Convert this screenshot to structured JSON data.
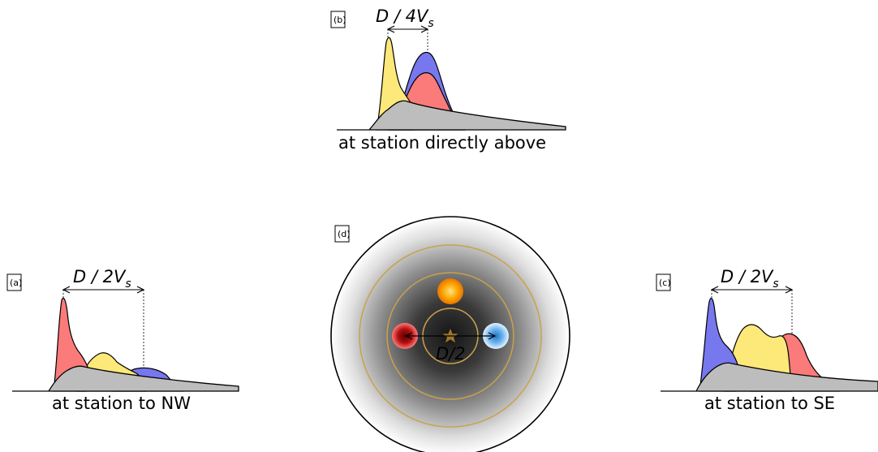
{
  "panels": {
    "b": {
      "tag": "(b)",
      "lag_main": "D / 4V",
      "lag_sub": "s",
      "caption": "at station directly above"
    },
    "a": {
      "tag": "(a)",
      "lag_main": "D / 2V",
      "lag_sub": "s",
      "caption": "at station to NW"
    },
    "c": {
      "tag": "(c)",
      "lag_main": "D / 2V",
      "lag_sub": "s",
      "caption": "at station to SE"
    },
    "d": {
      "tag": "(d)",
      "distance_label": "D/2"
    }
  },
  "colors": {
    "yellow": "#fde87a",
    "red": "#fb7a7a",
    "blue": "#7777ee",
    "gray": "#bdbdbd",
    "ring": "#c9a24a",
    "star": "#a0782a"
  },
  "icons": {
    "center": "star-icon",
    "sources": [
      "orange-source-icon",
      "red-source-icon",
      "blue-source-icon"
    ]
  }
}
